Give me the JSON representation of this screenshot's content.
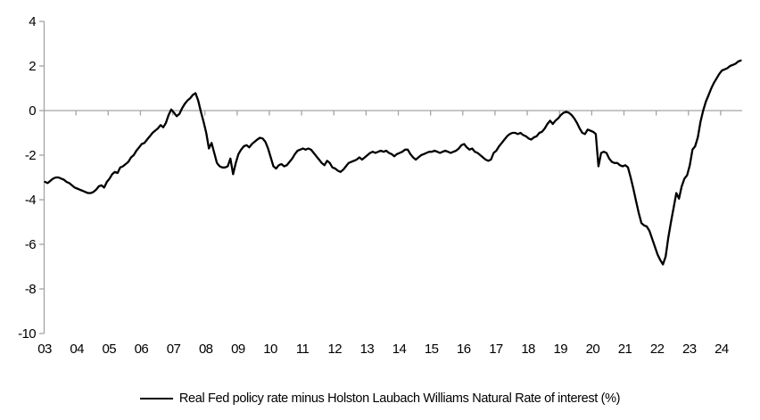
{
  "legend": {
    "label": "Real Fed policy rate minus Holston Laubach Williams Natural Rate of interest (%)"
  },
  "chart_data": {
    "type": "line",
    "title": "",
    "xlabel": "",
    "ylabel": "",
    "frequency": "monthly",
    "x_start": "2003-01",
    "x_end": "2024-08",
    "x_tick_labels": [
      "03",
      "04",
      "05",
      "06",
      "07",
      "08",
      "09",
      "10",
      "11",
      "12",
      "13",
      "14",
      "15",
      "16",
      "17",
      "18",
      "19",
      "20",
      "21",
      "22",
      "23",
      "24"
    ],
    "y_ticks": [
      4,
      2,
      0,
      -2,
      -4,
      -6,
      -8,
      -10
    ],
    "ylim": [
      -10,
      4
    ],
    "grid": "horizontal-zero-line-only",
    "legend_position": "bottom",
    "axis_color": "#a3a3a3",
    "series": [
      {
        "name": "Real Fed policy rate minus Holston Laubach Williams Natural Rate of interest (%)",
        "color": "#000000",
        "values": [
          -3.2,
          -3.25,
          -3.15,
          -3.05,
          -3.0,
          -3.0,
          -3.05,
          -3.1,
          -3.2,
          -3.25,
          -3.35,
          -3.45,
          -3.5,
          -3.55,
          -3.6,
          -3.65,
          -3.7,
          -3.7,
          -3.65,
          -3.55,
          -3.4,
          -3.35,
          -3.45,
          -3.2,
          -3.05,
          -2.85,
          -2.75,
          -2.8,
          -2.55,
          -2.5,
          -2.4,
          -2.3,
          -2.1,
          -2.0,
          -1.8,
          -1.65,
          -1.5,
          -1.45,
          -1.3,
          -1.15,
          -1.0,
          -0.9,
          -0.8,
          -0.65,
          -0.75,
          -0.55,
          -0.2,
          0.05,
          -0.1,
          -0.25,
          -0.15,
          0.1,
          0.3,
          0.45,
          0.55,
          0.7,
          0.78,
          0.45,
          -0.05,
          -0.5,
          -1.0,
          -1.7,
          -1.45,
          -1.9,
          -2.35,
          -2.5,
          -2.55,
          -2.55,
          -2.5,
          -2.15,
          -2.85,
          -2.35,
          -1.95,
          -1.75,
          -1.6,
          -1.55,
          -1.65,
          -1.5,
          -1.4,
          -1.3,
          -1.22,
          -1.25,
          -1.4,
          -1.7,
          -2.1,
          -2.5,
          -2.6,
          -2.45,
          -2.4,
          -2.5,
          -2.45,
          -2.3,
          -2.15,
          -1.95,
          -1.8,
          -1.75,
          -1.7,
          -1.75,
          -1.7,
          -1.75,
          -1.9,
          -2.05,
          -2.2,
          -2.35,
          -2.45,
          -2.25,
          -2.35,
          -2.55,
          -2.6,
          -2.7,
          -2.75,
          -2.65,
          -2.5,
          -2.35,
          -2.3,
          -2.25,
          -2.2,
          -2.1,
          -2.2,
          -2.1,
          -2.0,
          -1.9,
          -1.85,
          -1.9,
          -1.85,
          -1.8,
          -1.85,
          -1.8,
          -1.9,
          -1.95,
          -2.05,
          -1.95,
          -1.9,
          -1.85,
          -1.75,
          -1.75,
          -1.95,
          -2.1,
          -2.2,
          -2.1,
          -2.0,
          -1.95,
          -1.9,
          -1.85,
          -1.85,
          -1.8,
          -1.85,
          -1.9,
          -1.85,
          -1.8,
          -1.85,
          -1.9,
          -1.85,
          -1.8,
          -1.7,
          -1.55,
          -1.5,
          -1.65,
          -1.75,
          -1.7,
          -1.85,
          -1.9,
          -2.0,
          -2.1,
          -2.2,
          -2.25,
          -2.2,
          -1.9,
          -1.8,
          -1.6,
          -1.45,
          -1.3,
          -1.15,
          -1.05,
          -1.0,
          -1.0,
          -1.05,
          -1.0,
          -1.1,
          -1.15,
          -1.25,
          -1.3,
          -1.2,
          -1.15,
          -1.0,
          -0.95,
          -0.8,
          -0.6,
          -0.45,
          -0.6,
          -0.45,
          -0.35,
          -0.2,
          -0.1,
          -0.05,
          -0.1,
          -0.2,
          -0.35,
          -0.55,
          -0.8,
          -1.0,
          -1.05,
          -0.85,
          -0.9,
          -0.95,
          -1.05,
          -2.5,
          -1.9,
          -1.85,
          -1.9,
          -2.15,
          -2.3,
          -2.35,
          -2.35,
          -2.45,
          -2.5,
          -2.45,
          -2.55,
          -3.0,
          -3.5,
          -4.05,
          -4.6,
          -5.05,
          -5.15,
          -5.2,
          -5.4,
          -5.75,
          -6.1,
          -6.45,
          -6.7,
          -6.9,
          -6.55,
          -5.7,
          -5.0,
          -4.35,
          -3.7,
          -3.95,
          -3.4,
          -3.05,
          -2.9,
          -2.45,
          -1.75,
          -1.6,
          -1.2,
          -0.5,
          0.0,
          0.4,
          0.7,
          1.0,
          1.25,
          1.45,
          1.65,
          1.8,
          1.85,
          1.9,
          2.0,
          2.05,
          2.1,
          2.2,
          2.25
        ]
      }
    ]
  }
}
